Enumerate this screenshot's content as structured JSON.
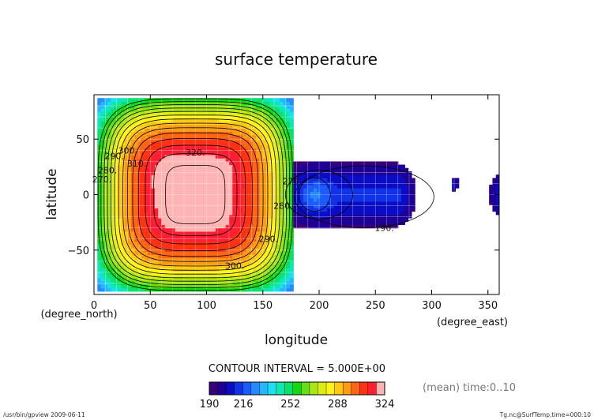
{
  "chart_data": {
    "type": "heatmap",
    "title": "surface temperature",
    "xlabel": "longitude",
    "ylabel": "latitude",
    "x_unit": "(degree_east)",
    "y_unit": "(degree_north)",
    "xlim": [
      0,
      360
    ],
    "ylim": [
      -90,
      90
    ],
    "x_ticks": [
      0,
      50,
      100,
      150,
      200,
      250,
      300,
      350
    ],
    "y_ticks": [
      -50,
      0,
      50
    ],
    "grid": true,
    "contour_interval_text": "CONTOUR INTERVAL = 5.000E+00",
    "contour_labels": [
      {
        "text": "320.",
        "lon": 90,
        "lat": 38
      },
      {
        "text": "310.",
        "lon": 38,
        "lat": 28
      },
      {
        "text": "300.",
        "lon": 30,
        "lat": 40
      },
      {
        "text": "290.",
        "lon": 18,
        "lat": 35
      },
      {
        "text": "280.",
        "lon": 12,
        "lat": 22
      },
      {
        "text": "270.",
        "lon": 7,
        "lat": 14
      },
      {
        "text": "290.",
        "lon": 155,
        "lat": -40
      },
      {
        "text": "300.",
        "lon": 125,
        "lat": -64
      },
      {
        "text": "280.",
        "lon": 168,
        "lat": -10
      },
      {
        "text": "270.",
        "lon": 176,
        "lat": 12
      },
      {
        "text": "190.",
        "lon": 258,
        "lat": -30
      }
    ],
    "colorbar": {
      "ticks": [
        "190",
        "216",
        "252",
        "288",
        "324"
      ],
      "min": 190,
      "max": 324,
      "colors": [
        "#3a007a",
        "#1e0096",
        "#0b0dc4",
        "#1133e8",
        "#1a5cff",
        "#2888ff",
        "#26b6ff",
        "#1ae0f0",
        "#10e6b4",
        "#0ae06c",
        "#14d814",
        "#66e014",
        "#a8e614",
        "#dcec14",
        "#fff214",
        "#ffc814",
        "#ff9a14",
        "#ff6614",
        "#ff3214",
        "#ff1e32",
        "#ffb4b4"
      ]
    },
    "colorbar_note": "(mean) time:0..10",
    "footer_left": "/usr/bin/gpview  2009-06-11",
    "footer_right": "Tg.nc@SurfTemp,time=000:10"
  }
}
